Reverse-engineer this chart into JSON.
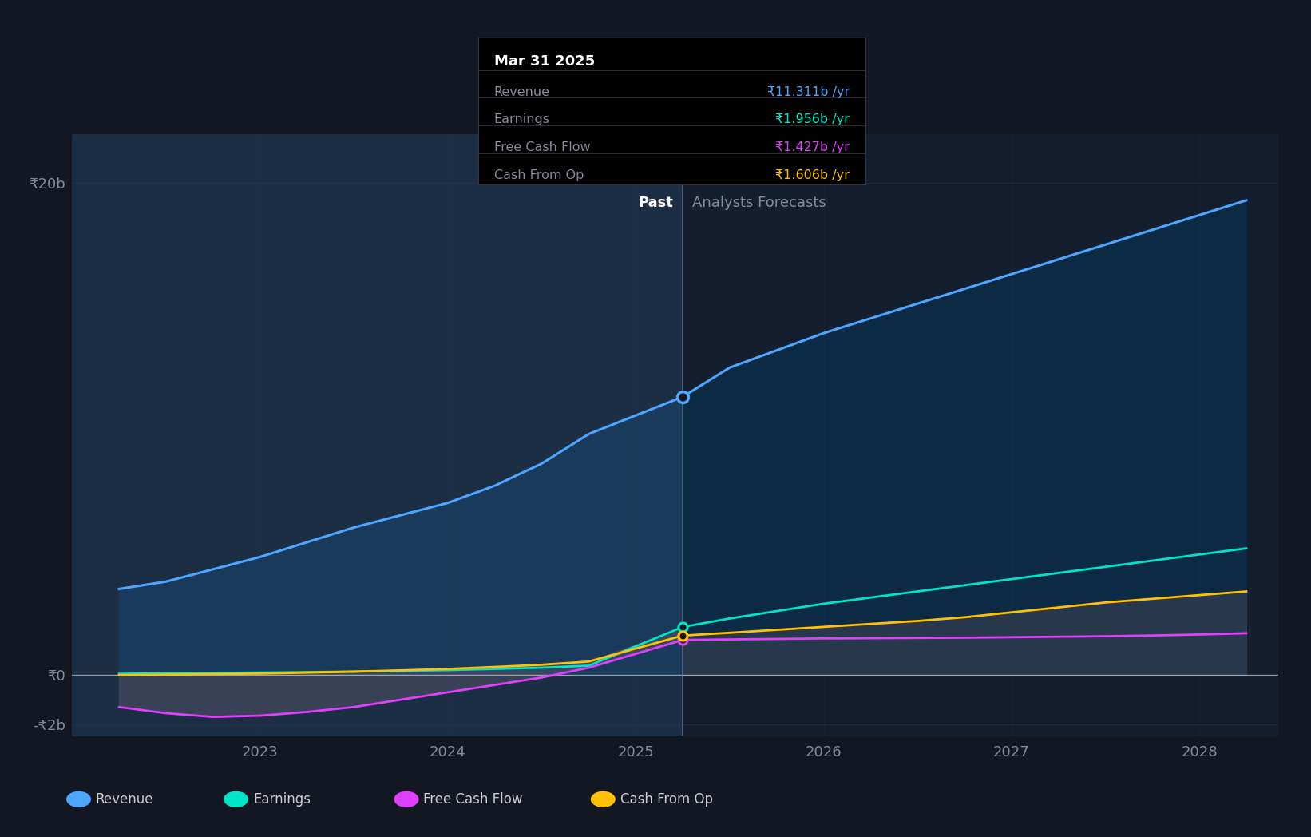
{
  "bg_color": "#131722",
  "x_years": [
    2022.25,
    2022.5,
    2022.75,
    2023.0,
    2023.25,
    2023.5,
    2023.75,
    2024.0,
    2024.25,
    2024.5,
    2024.75,
    2025.25,
    2025.5,
    2025.75,
    2026.0,
    2026.25,
    2026.5,
    2026.75,
    2027.0,
    2027.25,
    2027.5,
    2027.75,
    2028.0,
    2028.25
  ],
  "revenue": [
    3.5,
    3.8,
    4.3,
    4.8,
    5.4,
    6.0,
    6.5,
    7.0,
    7.7,
    8.6,
    9.8,
    11.311,
    12.5,
    13.2,
    13.9,
    14.5,
    15.1,
    15.7,
    16.3,
    16.9,
    17.5,
    18.1,
    18.7,
    19.3
  ],
  "earnings": [
    0.05,
    0.07,
    0.08,
    0.1,
    0.12,
    0.14,
    0.17,
    0.2,
    0.25,
    0.3,
    0.38,
    1.956,
    2.3,
    2.6,
    2.9,
    3.15,
    3.4,
    3.65,
    3.9,
    4.15,
    4.4,
    4.65,
    4.9,
    5.15
  ],
  "free_cash_flow": [
    -1.3,
    -1.55,
    -1.7,
    -1.65,
    -1.5,
    -1.3,
    -1.0,
    -0.7,
    -0.4,
    -0.1,
    0.3,
    1.427,
    1.45,
    1.47,
    1.49,
    1.5,
    1.51,
    1.52,
    1.54,
    1.56,
    1.58,
    1.61,
    1.65,
    1.7
  ],
  "cash_from_op": [
    0.0,
    0.02,
    0.04,
    0.06,
    0.1,
    0.14,
    0.19,
    0.25,
    0.33,
    0.42,
    0.55,
    1.606,
    1.72,
    1.84,
    1.96,
    2.08,
    2.2,
    2.35,
    2.55,
    2.75,
    2.95,
    3.1,
    3.25,
    3.4
  ],
  "pivot_x": 2025.25,
  "pivot_idx": 11,
  "revenue_color": "#4da6ff",
  "earnings_color": "#00e5c8",
  "free_cash_flow_color": "#e040fb",
  "cash_from_op_color": "#ffc107",
  "ylim": [
    -2.5,
    22.0
  ],
  "xlabel_ticks": [
    2023,
    2024,
    2025,
    2026,
    2027,
    2028
  ],
  "xlabel_labels": [
    "2023",
    "2024",
    "2025",
    "2026",
    "2027",
    "2028"
  ],
  "tooltip_title": "Mar 31 2025",
  "tooltip_rows": [
    {
      "label": "Revenue",
      "value": "₹11.311b /yr",
      "color": "#4da6ff"
    },
    {
      "label": "Earnings",
      "value": "₹1.956b /yr",
      "color": "#00e5c8"
    },
    {
      "label": "Free Cash Flow",
      "value": "₹1.427b /yr",
      "color": "#e040fb"
    },
    {
      "label": "Cash From Op",
      "value": "₹1.606b /yr",
      "color": "#ffc107"
    }
  ],
  "legend_items": [
    {
      "label": "Revenue",
      "color": "#4da6ff"
    },
    {
      "label": "Earnings",
      "color": "#00e5c8"
    },
    {
      "label": "Free Cash Flow",
      "color": "#e040fb"
    },
    {
      "label": "Cash From Op",
      "color": "#ffc107"
    }
  ],
  "past_label": "Past",
  "forecast_label": "Analysts Forecasts",
  "grid_color": "#2a3550",
  "divider_color": "#5a6a8a"
}
